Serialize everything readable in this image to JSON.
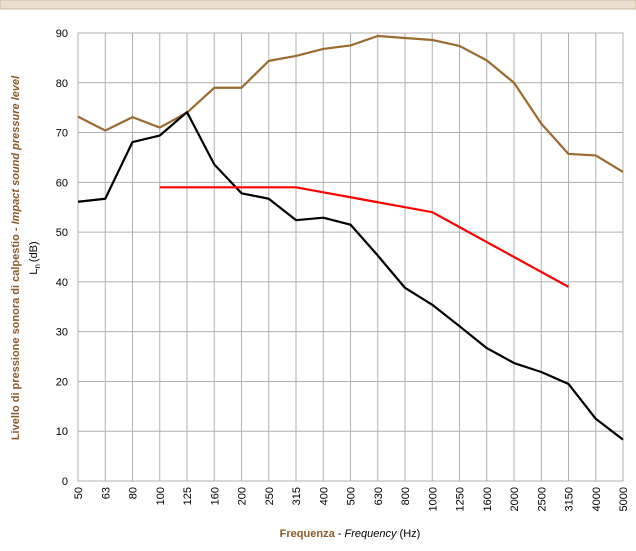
{
  "chart_data": {
    "type": "line",
    "categories": [
      "50",
      "63",
      "80",
      "100",
      "125",
      "160",
      "200",
      "250",
      "315",
      "400",
      "500",
      "630",
      "800",
      "1000",
      "1250",
      "1600",
      "2000",
      "2500",
      "3150",
      "4000",
      "5000"
    ],
    "series": [
      {
        "color": "#9b6a2f",
        "values": [
          73.2,
          70.4,
          73.1,
          71,
          74,
          79,
          79,
          84.4,
          85.4,
          86.8,
          87.5,
          89.4,
          89,
          88.6,
          87.4,
          84.5,
          80,
          71.8,
          65.7,
          65.4,
          62.1
        ]
      },
      {
        "color": "#000000",
        "values": [
          56.1,
          56.7,
          68.1,
          69.4,
          74.1,
          63.6,
          57.8,
          56.7,
          52.4,
          52.9,
          51.5,
          45.3,
          38.8,
          35.4,
          31.1,
          26.7,
          23.7,
          21.9,
          19.5,
          12.5,
          8.3
        ]
      },
      {
        "color": "#ff0000",
        "values": [
          null,
          null,
          null,
          59,
          59,
          59,
          59,
          59,
          59,
          58,
          57,
          56,
          55,
          54,
          51,
          48,
          45,
          42,
          39,
          null,
          null
        ]
      }
    ],
    "ylim": [
      0,
      90
    ],
    "yticks": [
      0,
      10,
      20,
      30,
      40,
      50,
      60,
      70,
      80,
      90
    ],
    "grid": true,
    "y_label": {
      "main": "Livello di pressione sonora di calpestio",
      "separator": "-",
      "translation": "Impact sound pressure level"
    },
    "y_unit": {
      "symbol": "L",
      "subscript": "n",
      "unit": "(dB)"
    },
    "x_label": {
      "main": "Frequenza",
      "separator": "-",
      "translation": "Frequency",
      "unit": "(Hz)"
    }
  }
}
